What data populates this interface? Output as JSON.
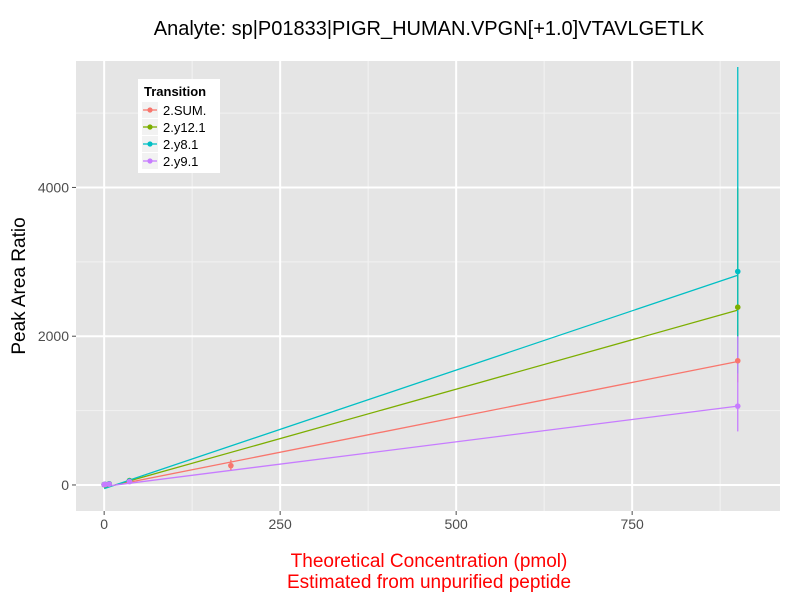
{
  "chart_data": {
    "type": "line",
    "title": "Analyte: sp|P01833|PIGR_HUMAN.VPGN[+1.0]VTAVLGETLK",
    "xlabel_lines": [
      "Theoretical Concentration (pmol)",
      "Estimated from unpurified peptide"
    ],
    "xlabel_color": "#ff0000",
    "ylabel": "Peak Area Ratio",
    "xlim": [
      -40,
      960
    ],
    "ylim": [
      -350,
      5700
    ],
    "x_ticks": [
      0,
      250,
      500,
      750
    ],
    "x_tick_labels": [
      "0",
      "250",
      "500",
      "750"
    ],
    "y_ticks": [
      0,
      2000,
      4000
    ],
    "y_tick_labels": [
      "0",
      "2000",
      "4000"
    ],
    "grid": true,
    "panel_background": "#e5e5e5",
    "legend": {
      "title": "Transition",
      "placement": "top-left",
      "entries": [
        "2.SUM.",
        "2.y12.1",
        "2.y8.1",
        "2.y9.1"
      ]
    },
    "series": [
      {
        "name": "2.SUM.",
        "color": "#f8766d",
        "points": [
          {
            "x": 0,
            "y": 5
          },
          {
            "x": 1.4,
            "y": 8
          },
          {
            "x": 7.2,
            "y": 12
          },
          {
            "x": 36,
            "y": 50
          },
          {
            "x": 180,
            "y": 260
          },
          {
            "x": 900,
            "y": 1670
          }
        ],
        "error_bars": [
          {
            "x": 180,
            "low": 200,
            "high": 340
          },
          {
            "x": 900,
            "low": 1380,
            "high": 2150
          }
        ],
        "fit_line": [
          {
            "x": 0,
            "y": -30
          },
          {
            "x": 900,
            "y": 1660
          }
        ]
      },
      {
        "name": "2.y12.1",
        "color": "#7cae00",
        "points": [
          {
            "x": 0,
            "y": 5
          },
          {
            "x": 1.4,
            "y": 8
          },
          {
            "x": 7.2,
            "y": 15
          },
          {
            "x": 36,
            "y": 60
          },
          {
            "x": 900,
            "y": 2390
          }
        ],
        "error_bars": [
          {
            "x": 900,
            "low": 1900,
            "high": 4000
          }
        ],
        "fit_line": [
          {
            "x": 0,
            "y": -40
          },
          {
            "x": 900,
            "y": 2350
          }
        ]
      },
      {
        "name": "2.y8.1",
        "color": "#00bfc4",
        "points": [
          {
            "x": 0,
            "y": 5
          },
          {
            "x": 1.4,
            "y": 8
          },
          {
            "x": 7.2,
            "y": 15
          },
          {
            "x": 36,
            "y": 55
          },
          {
            "x": 900,
            "y": 2870
          }
        ],
        "error_bars": [
          {
            "x": 900,
            "low": 1500,
            "high": 5620
          }
        ],
        "fit_line": [
          {
            "x": 0,
            "y": -50
          },
          {
            "x": 900,
            "y": 2820
          }
        ]
      },
      {
        "name": "2.y9.1",
        "color": "#c77cff",
        "points": [
          {
            "x": 0,
            "y": 5
          },
          {
            "x": 1.4,
            "y": 8
          },
          {
            "x": 7.2,
            "y": 12
          },
          {
            "x": 36,
            "y": 45
          },
          {
            "x": 900,
            "y": 1060
          }
        ],
        "error_bars": [
          {
            "x": 900,
            "low": 720,
            "high": 2000
          }
        ],
        "fit_line": [
          {
            "x": 0,
            "y": -20
          },
          {
            "x": 900,
            "y": 1060
          }
        ]
      }
    ]
  }
}
